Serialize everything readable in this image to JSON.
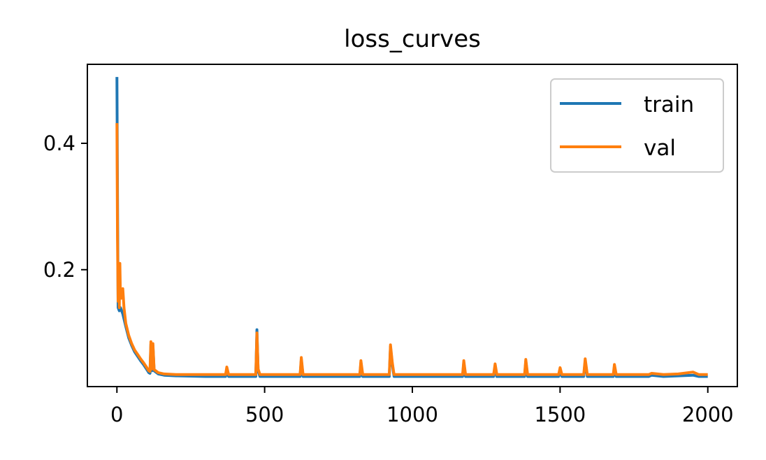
{
  "chart_data": {
    "type": "line",
    "title": "loss_curves",
    "xlabel": "",
    "ylabel": "",
    "xlim": [
      -100,
      2100
    ],
    "ylim": [
      0.015,
      0.525
    ],
    "xticks": [
      0,
      500,
      1000,
      1500,
      2000
    ],
    "xtick_labels": [
      "0",
      "500",
      "1000",
      "1500",
      "2000"
    ],
    "yticks": [
      0.2,
      0.4
    ],
    "ytick_labels": [
      "0.2",
      "0.4"
    ],
    "grid": false,
    "legend_position": "top-right",
    "series": [
      {
        "name": "train",
        "color": "#1f77b4",
        "points": [
          [
            0,
            0.505
          ],
          [
            2,
            0.32
          ],
          [
            4,
            0.14
          ],
          [
            8,
            0.135
          ],
          [
            12,
            0.14
          ],
          [
            16,
            0.135
          ],
          [
            20,
            0.13
          ],
          [
            30,
            0.11
          ],
          [
            40,
            0.092
          ],
          [
            50,
            0.08
          ],
          [
            60,
            0.07
          ],
          [
            70,
            0.063
          ],
          [
            80,
            0.056
          ],
          [
            90,
            0.05
          ],
          [
            100,
            0.043
          ],
          [
            108,
            0.037
          ],
          [
            112,
            0.036
          ],
          [
            115,
            0.082
          ],
          [
            118,
            0.04
          ],
          [
            122,
            0.08
          ],
          [
            126,
            0.04
          ],
          [
            140,
            0.035
          ],
          [
            160,
            0.033
          ],
          [
            200,
            0.032
          ],
          [
            300,
            0.031
          ],
          [
            368,
            0.031
          ],
          [
            372,
            0.043
          ],
          [
            378,
            0.031
          ],
          [
            470,
            0.031
          ],
          [
            474,
            0.105
          ],
          [
            478,
            0.04
          ],
          [
            484,
            0.031
          ],
          [
            620,
            0.031
          ],
          [
            624,
            0.058
          ],
          [
            630,
            0.031
          ],
          [
            822,
            0.031
          ],
          [
            826,
            0.053
          ],
          [
            832,
            0.031
          ],
          [
            922,
            0.031
          ],
          [
            926,
            0.078
          ],
          [
            932,
            0.05
          ],
          [
            938,
            0.031
          ],
          [
            1170,
            0.031
          ],
          [
            1174,
            0.053
          ],
          [
            1180,
            0.031
          ],
          [
            1275,
            0.031
          ],
          [
            1280,
            0.048
          ],
          [
            1286,
            0.031
          ],
          [
            1380,
            0.031
          ],
          [
            1384,
            0.055
          ],
          [
            1390,
            0.031
          ],
          [
            1495,
            0.031
          ],
          [
            1500,
            0.042
          ],
          [
            1506,
            0.031
          ],
          [
            1580,
            0.031
          ],
          [
            1585,
            0.056
          ],
          [
            1592,
            0.031
          ],
          [
            1680,
            0.031
          ],
          [
            1684,
            0.047
          ],
          [
            1690,
            0.031
          ],
          [
            1800,
            0.031
          ],
          [
            1810,
            0.033
          ],
          [
            1850,
            0.031
          ],
          [
            1900,
            0.032
          ],
          [
            1950,
            0.033
          ],
          [
            1970,
            0.031
          ],
          [
            2000,
            0.031
          ]
        ]
      },
      {
        "name": "val",
        "color": "#ff7f0e",
        "points": [
          [
            0,
            0.432
          ],
          [
            2,
            0.25
          ],
          [
            4,
            0.15
          ],
          [
            6,
            0.2
          ],
          [
            8,
            0.14
          ],
          [
            10,
            0.21
          ],
          [
            12,
            0.16
          ],
          [
            16,
            0.155
          ],
          [
            20,
            0.17
          ],
          [
            24,
            0.14
          ],
          [
            30,
            0.115
          ],
          [
            40,
            0.096
          ],
          [
            50,
            0.083
          ],
          [
            60,
            0.073
          ],
          [
            70,
            0.066
          ],
          [
            80,
            0.059
          ],
          [
            90,
            0.053
          ],
          [
            100,
            0.046
          ],
          [
            108,
            0.04
          ],
          [
            112,
            0.039
          ],
          [
            115,
            0.086
          ],
          [
            118,
            0.043
          ],
          [
            122,
            0.083
          ],
          [
            126,
            0.042
          ],
          [
            140,
            0.037
          ],
          [
            160,
            0.035
          ],
          [
            200,
            0.034
          ],
          [
            300,
            0.034
          ],
          [
            368,
            0.034
          ],
          [
            372,
            0.046
          ],
          [
            378,
            0.034
          ],
          [
            470,
            0.034
          ],
          [
            474,
            0.1
          ],
          [
            478,
            0.043
          ],
          [
            484,
            0.034
          ],
          [
            620,
            0.034
          ],
          [
            624,
            0.061
          ],
          [
            630,
            0.034
          ],
          [
            822,
            0.034
          ],
          [
            826,
            0.056
          ],
          [
            832,
            0.034
          ],
          [
            922,
            0.034
          ],
          [
            926,
            0.081
          ],
          [
            932,
            0.053
          ],
          [
            938,
            0.034
          ],
          [
            1170,
            0.034
          ],
          [
            1174,
            0.056
          ],
          [
            1180,
            0.034
          ],
          [
            1275,
            0.034
          ],
          [
            1280,
            0.051
          ],
          [
            1286,
            0.034
          ],
          [
            1380,
            0.034
          ],
          [
            1384,
            0.058
          ],
          [
            1390,
            0.034
          ],
          [
            1495,
            0.034
          ],
          [
            1500,
            0.045
          ],
          [
            1506,
            0.034
          ],
          [
            1580,
            0.034
          ],
          [
            1585,
            0.059
          ],
          [
            1592,
            0.034
          ],
          [
            1680,
            0.034
          ],
          [
            1684,
            0.05
          ],
          [
            1690,
            0.034
          ],
          [
            1800,
            0.034
          ],
          [
            1810,
            0.036
          ],
          [
            1850,
            0.034
          ],
          [
            1900,
            0.035
          ],
          [
            1950,
            0.038
          ],
          [
            1970,
            0.034
          ],
          [
            2000,
            0.034
          ]
        ]
      }
    ]
  }
}
